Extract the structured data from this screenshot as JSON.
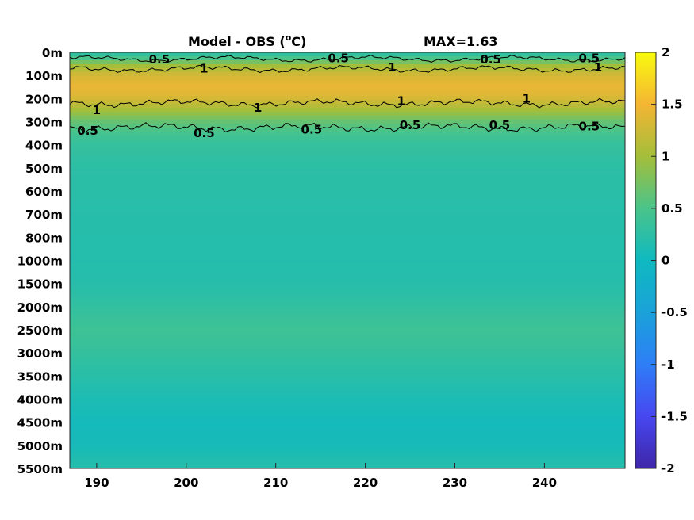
{
  "chart_data": {
    "type": "heatmap",
    "title": "Model - OBS (°C)",
    "title_main": "Model - OBS (",
    "title_sup": "o",
    "title_unit": "C)",
    "max_label": "MAX=1.63",
    "xlim": [
      187,
      249
    ],
    "x_ticks": [
      190,
      200,
      210,
      220,
      230,
      240
    ],
    "x_tick_labels": [
      "190",
      "200",
      "210",
      "220",
      "230",
      "240"
    ],
    "y_tick_labels": [
      "0m",
      "100m",
      "200m",
      "300m",
      "400m",
      "500m",
      "600m",
      "700m",
      "800m",
      "1000m",
      "1500m",
      "2000m",
      "2500m",
      "3000m",
      "3500m",
      "4000m",
      "4500m",
      "5000m",
      "5500m"
    ],
    "clim": [
      -2,
      2
    ],
    "colorbar_ticks": [
      2,
      1.5,
      1,
      0.5,
      0,
      -0.5,
      -1,
      -1.5,
      -2
    ],
    "colorbar_tick_labels": [
      "2",
      "1.5",
      "1",
      "0.5",
      "0",
      "-0.5",
      "-1",
      "-1.5",
      "-2"
    ],
    "colormap": "parula",
    "contour_levels": [
      0.5,
      1
    ],
    "contour_labels": [
      {
        "text": "0.5",
        "x": 197,
        "depth_index": 0.3
      },
      {
        "text": "1",
        "x": 202,
        "depth_index": 0.7
      },
      {
        "text": "0.5",
        "x": 217,
        "depth_index": 0.25
      },
      {
        "text": "1",
        "x": 223,
        "depth_index": 0.65
      },
      {
        "text": "0.5",
        "x": 234,
        "depth_index": 0.3
      },
      {
        "text": "1",
        "x": 246,
        "depth_index": 0.65
      },
      {
        "text": "0.5",
        "x": 245,
        "depth_index": 0.25
      },
      {
        "text": "1",
        "x": 190,
        "depth_index": 2.5
      },
      {
        "text": "1",
        "x": 208,
        "depth_index": 2.4
      },
      {
        "text": "1",
        "x": 224,
        "depth_index": 2.1
      },
      {
        "text": "1",
        "x": 238,
        "depth_index": 2.0
      },
      {
        "text": "0.5",
        "x": 189,
        "depth_index": 3.4
      },
      {
        "text": "0.5",
        "x": 202,
        "depth_index": 3.5
      },
      {
        "text": "0.5",
        "x": 214,
        "depth_index": 3.35
      },
      {
        "text": "0.5",
        "x": 225,
        "depth_index": 3.15
      },
      {
        "text": "0.5",
        "x": 235,
        "depth_index": 3.15
      },
      {
        "text": "0.5",
        "x": 245,
        "depth_index": 3.2
      }
    ],
    "profile": [
      {
        "depth_index": 0.0,
        "value": 0.2
      },
      {
        "depth_index": 0.3,
        "value": 0.55
      },
      {
        "depth_index": 0.6,
        "value": 1.0
      },
      {
        "depth_index": 1.0,
        "value": 1.3
      },
      {
        "depth_index": 1.5,
        "value": 1.45
      },
      {
        "depth_index": 2.0,
        "value": 1.3
      },
      {
        "depth_index": 2.5,
        "value": 1.0
      },
      {
        "depth_index": 3.0,
        "value": 0.65
      },
      {
        "depth_index": 3.5,
        "value": 0.45
      },
      {
        "depth_index": 4.0,
        "value": 0.32
      },
      {
        "depth_index": 5.0,
        "value": 0.25
      },
      {
        "depth_index": 7.0,
        "value": 0.2
      },
      {
        "depth_index": 9.0,
        "value": 0.18
      },
      {
        "depth_index": 10.0,
        "value": 0.2
      },
      {
        "depth_index": 11.0,
        "value": 0.3
      },
      {
        "depth_index": 12.0,
        "value": 0.4
      },
      {
        "depth_index": 13.0,
        "value": 0.32
      },
      {
        "depth_index": 14.0,
        "value": 0.22
      },
      {
        "depth_index": 15.0,
        "value": 0.12
      },
      {
        "depth_index": 16.0,
        "value": 0.05
      },
      {
        "depth_index": 17.0,
        "value": 0.07
      },
      {
        "depth_index": 18.0,
        "value": 0.2
      }
    ]
  }
}
